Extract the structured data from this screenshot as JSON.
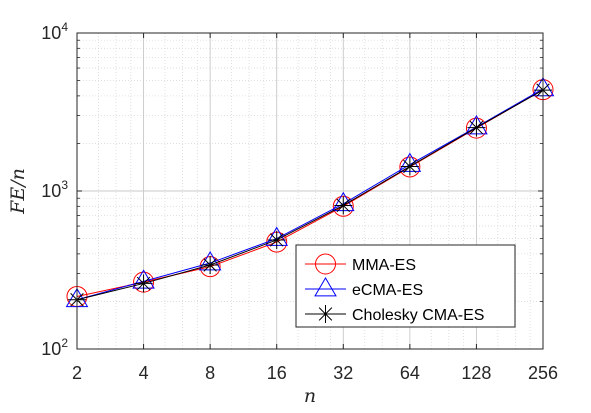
{
  "chart_data": {
    "type": "line",
    "xscale": "log2",
    "yscale": "log",
    "grid": true,
    "minor_grid": true,
    "legend_position": "bottom-right",
    "xlabel": "n",
    "ylabel": "FE/n",
    "xlim": [
      2,
      256
    ],
    "ylim": [
      100,
      10000
    ],
    "x": [
      2,
      4,
      8,
      16,
      32,
      64,
      128,
      256
    ],
    "x_tick_labels": [
      "2",
      "4",
      "8",
      "16",
      "32",
      "64",
      "128",
      "256"
    ],
    "y_ticks": [
      {
        "value": 100,
        "base": "10",
        "exp": "2"
      },
      {
        "value": 1000,
        "base": "10",
        "exp": "3"
      },
      {
        "value": 10000,
        "base": "10",
        "exp": "4"
      }
    ],
    "series": [
      {
        "name": "MMA-ES",
        "color": "#ff0000",
        "marker": "circle",
        "values": [
          215,
          265,
          332,
          475,
          800,
          1420,
          2500,
          4380
        ]
      },
      {
        "name": "eCMA-ES",
        "color": "#0000ff",
        "marker": "triangle",
        "values": [
          205,
          268,
          350,
          500,
          830,
          1470,
          2540,
          4430
        ]
      },
      {
        "name": "Cholesky CMA-ES",
        "color": "#000000",
        "marker": "asterisk",
        "values": [
          205,
          260,
          340,
          490,
          810,
          1430,
          2520,
          4350
        ]
      }
    ]
  }
}
